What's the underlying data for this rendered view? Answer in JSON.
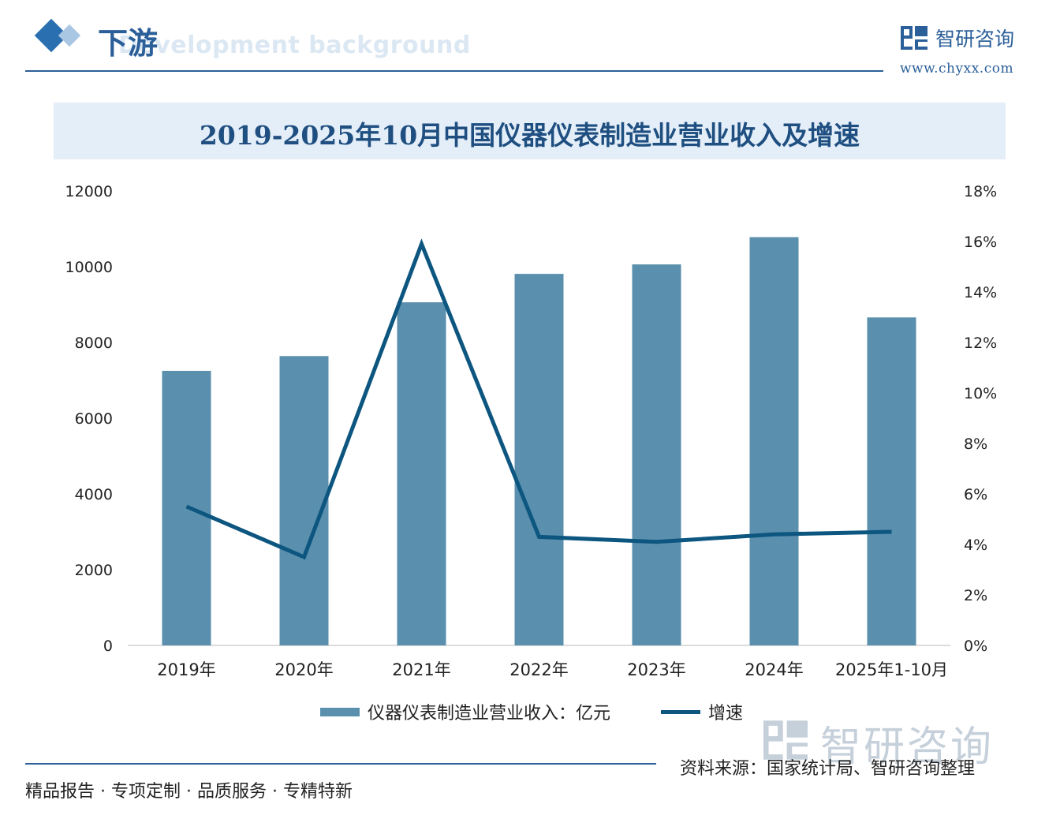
{
  "header": {
    "section_title": "下游",
    "section_subtitle": "Development background",
    "brand_name": "智研咨询",
    "brand_url": "www.chyxx.com"
  },
  "chart_data": {
    "type": "bar",
    "title": "2019-2025年10月中国仪器仪表制造业营业收入及增速",
    "categories": [
      "2019年",
      "2020年",
      "2021年",
      "2022年",
      "2023年",
      "2024年",
      "2025年1-10月"
    ],
    "series": [
      {
        "name": "仪器仪表制造业营业收入：亿元",
        "type": "bar",
        "axis": "left",
        "color": "#5a8fad",
        "values": [
          7250,
          7640,
          9060,
          9810,
          10060,
          10780,
          8660
        ]
      },
      {
        "name": "增速",
        "type": "line",
        "axis": "right",
        "color": "#0d5680",
        "values": [
          5.5,
          3.5,
          15.9,
          4.3,
          4.1,
          4.4,
          4.5
        ]
      }
    ],
    "y_left": {
      "min": 0,
      "max": 12000,
      "ticks": [
        "0",
        "2000",
        "4000",
        "6000",
        "8000",
        "10000",
        "12000"
      ]
    },
    "y_right": {
      "min": 0,
      "max": 18,
      "ticks": [
        "0%",
        "2%",
        "4%",
        "6%",
        "8%",
        "10%",
        "12%",
        "14%",
        "16%",
        "18%"
      ]
    },
    "grid": false,
    "legend_position": "bottom"
  },
  "legend": {
    "bar_label": "仪器仪表制造业营业收入：亿元",
    "line_label": "增速"
  },
  "footer": {
    "slogan": "精品报告 · 专项定制 · 品质服务 · 专精特新",
    "source": "资料来源：国家统计局、智研咨询整理",
    "watermark_name": "智研咨询"
  }
}
